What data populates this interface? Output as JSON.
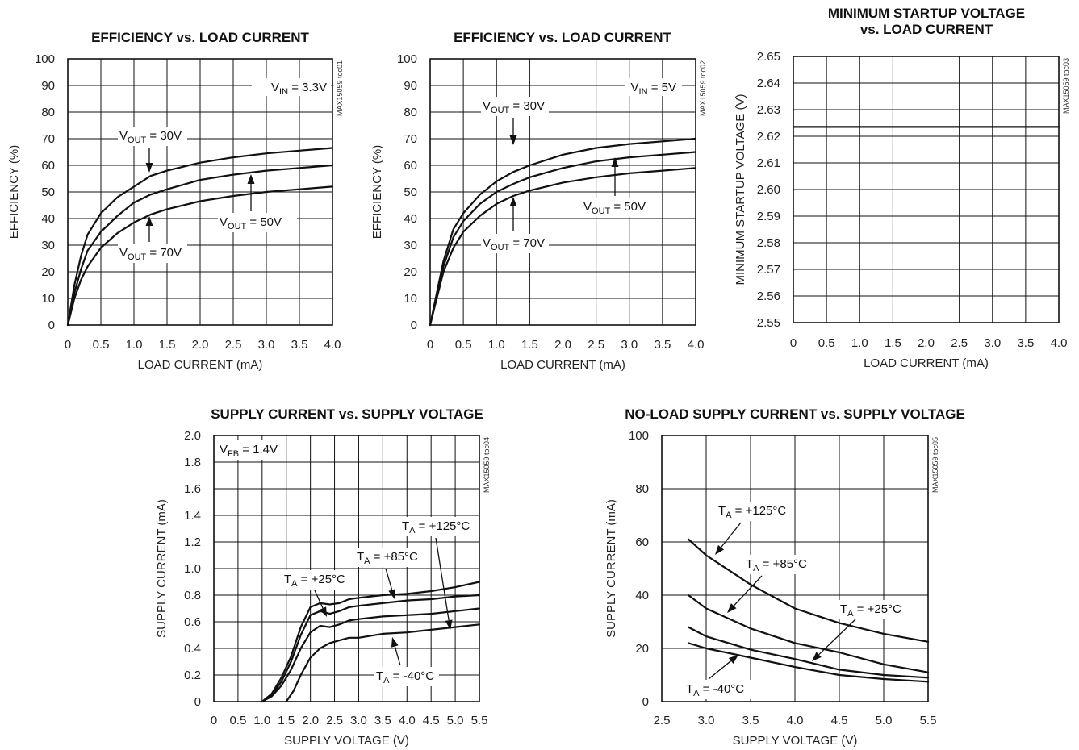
{
  "chart_data": [
    {
      "type": "line",
      "title": "EFFICIENCY vs. LOAD CURRENT",
      "xlabel": "LOAD CURRENT (mA)",
      "ylabel": "EFFICIENCY (%)",
      "xlim": [
        0,
        4.0
      ],
      "ylim": [
        0,
        100
      ],
      "xticks": [
        "0",
        "0.5",
        "1.0",
        "1.5",
        "2.0",
        "2.5",
        "3.0",
        "3.5",
        "4.0"
      ],
      "yticks": [
        "0",
        "10",
        "20",
        "30",
        "40",
        "50",
        "60",
        "70",
        "80",
        "90",
        "100"
      ],
      "code": "MAX15059 toc01",
      "grid": true,
      "series": [
        {
          "name": "VOUT = 30V",
          "x": [
            0,
            0.1,
            0.2,
            0.3,
            0.5,
            0.75,
            1.0,
            1.25,
            1.5,
            2.0,
            2.5,
            3.0,
            3.5,
            4.0
          ],
          "values": [
            0,
            15,
            26,
            34,
            42,
            48,
            52,
            56,
            58,
            61,
            63,
            64.5,
            65.5,
            66.5
          ]
        },
        {
          "name": "VOUT = 50V",
          "x": [
            0,
            0.1,
            0.2,
            0.3,
            0.5,
            0.75,
            1.0,
            1.25,
            1.5,
            2.0,
            2.5,
            3.0,
            3.5,
            4.0
          ],
          "values": [
            0,
            12,
            21,
            28,
            35,
            41,
            46,
            49,
            51,
            54.5,
            56.5,
            58,
            59,
            60
          ]
        },
        {
          "name": "VOUT = 70V",
          "x": [
            0,
            0.1,
            0.2,
            0.3,
            0.5,
            0.75,
            1.0,
            1.25,
            1.5,
            2.0,
            2.5,
            3.0,
            3.5,
            4.0
          ],
          "values": [
            0,
            10,
            17,
            22,
            29,
            34.5,
            38.5,
            41.5,
            43.5,
            46.5,
            48.5,
            50,
            51,
            52
          ]
        }
      ],
      "annotations": {
        "vin": {
          "main": "V",
          "sub": "IN",
          "rest": " = 3.3V"
        },
        "labels": [
          {
            "main": "V",
            "sub": "OUT",
            "rest": " = 30V"
          },
          {
            "main": "V",
            "sub": "OUT",
            "rest": " = 50V"
          },
          {
            "main": "V",
            "sub": "OUT",
            "rest": " = 70V"
          }
        ]
      }
    },
    {
      "type": "line",
      "title": "EFFICIENCY vs. LOAD CURRENT",
      "xlabel": "LOAD CURRENT (mA)",
      "ylabel": "EFFICIENCY (%)",
      "xlim": [
        0,
        4.0
      ],
      "ylim": [
        0,
        100
      ],
      "xticks": [
        "0",
        "0.5",
        "1.0",
        "1.5",
        "2.0",
        "2.5",
        "3.0",
        "3.5",
        "4.0"
      ],
      "yticks": [
        "0",
        "10",
        "20",
        "30",
        "40",
        "50",
        "60",
        "70",
        "80",
        "90",
        "100"
      ],
      "code": "MAX15059 toc02",
      "grid": true,
      "series": [
        {
          "name": "VOUT = 30V",
          "x": [
            0,
            0.1,
            0.2,
            0.35,
            0.5,
            0.75,
            1.0,
            1.25,
            1.5,
            2.0,
            2.5,
            3.0,
            3.5,
            4.0
          ],
          "values": [
            0,
            12,
            24,
            36,
            42,
            49,
            54,
            57.5,
            60,
            64,
            66.5,
            68,
            69,
            70
          ]
        },
        {
          "name": "VOUT = 50V",
          "x": [
            0,
            0.1,
            0.2,
            0.35,
            0.5,
            0.75,
            1.0,
            1.25,
            1.5,
            2.0,
            2.5,
            3.0,
            3.5,
            4.0
          ],
          "values": [
            0,
            11,
            22,
            33,
            39,
            45.5,
            50,
            53,
            55.5,
            59,
            61.5,
            63,
            64,
            65
          ]
        },
        {
          "name": "VOUT = 70V",
          "x": [
            0,
            0.1,
            0.2,
            0.35,
            0.5,
            0.75,
            1.0,
            1.25,
            1.5,
            2.0,
            2.5,
            3.0,
            3.5,
            4.0
          ],
          "values": [
            0,
            10,
            20,
            29,
            35,
            41,
            45.5,
            48.5,
            50.5,
            53.5,
            55.5,
            57,
            58,
            59
          ]
        }
      ],
      "annotations": {
        "vin": {
          "main": "V",
          "sub": "IN",
          "rest": " = 5V"
        },
        "labels": [
          {
            "main": "V",
            "sub": "OUT",
            "rest": " = 30V"
          },
          {
            "main": "V",
            "sub": "OUT",
            "rest": " = 50V"
          },
          {
            "main": "V",
            "sub": "OUT",
            "rest": " = 70V"
          }
        ]
      }
    },
    {
      "type": "line",
      "title": "MINIMUM STARTUP VOLTAGE",
      "title2": "vs. LOAD CURRENT",
      "xlabel": "LOAD CURRENT (mA)",
      "ylabel": "MINIMUM STARTUP VOLTAGE (V)",
      "xlim": [
        0,
        4.0
      ],
      "ylim": [
        2.55,
        2.65
      ],
      "xticks": [
        "0",
        "0.5",
        "1.0",
        "1.5",
        "2.0",
        "2.5",
        "3.0",
        "3.5",
        "4.0"
      ],
      "yticks": [
        "2.55",
        "2.56",
        "2.57",
        "2.58",
        "2.59",
        "2.60",
        "2.61",
        "2.62",
        "2.63",
        "2.64",
        "2.65"
      ],
      "code": "MAX15059 toc03",
      "grid": true,
      "series": [
        {
          "x": [
            0,
            4.0
          ],
          "values": [
            2.6235,
            2.6235
          ]
        }
      ]
    },
    {
      "type": "line",
      "title": "SUPPLY CURRENT vs. SUPPLY VOLTAGE",
      "xlabel": "SUPPLY VOLTAGE (V)",
      "ylabel": "SUPPLY CURRENT (mA)",
      "xlim": [
        0,
        5.5
      ],
      "ylim": [
        0,
        2.0
      ],
      "xticks": [
        "0",
        "0.5",
        "1.0",
        "1.5",
        "2.0",
        "2.5",
        "3.0",
        "3.5",
        "4.0",
        "4.5",
        "5.0",
        "5.5"
      ],
      "yticks": [
        "0",
        "0.2",
        "0.4",
        "0.6",
        "0.8",
        "1.0",
        "1.2",
        "1.4",
        "1.6",
        "1.8",
        "2.0"
      ],
      "code": "MAX15059 toc04",
      "grid": true,
      "series": [
        {
          "name": "TA = +125°C",
          "x": [
            1.0,
            1.2,
            1.4,
            1.6,
            1.8,
            2.0,
            2.2,
            2.4,
            2.6,
            2.8,
            3.0,
            3.5,
            4.0,
            4.5,
            5.0,
            5.5
          ],
          "values": [
            0,
            0.06,
            0.18,
            0.34,
            0.56,
            0.71,
            0.74,
            0.73,
            0.74,
            0.77,
            0.78,
            0.8,
            0.81,
            0.83,
            0.86,
            0.9
          ]
        },
        {
          "name": "TA = +85°C",
          "x": [
            1.0,
            1.2,
            1.4,
            1.6,
            1.8,
            2.0,
            2.2,
            2.4,
            2.6,
            2.8,
            3.0,
            3.5,
            4.0,
            4.5,
            5.0,
            5.5
          ],
          "values": [
            0,
            0.05,
            0.15,
            0.3,
            0.5,
            0.65,
            0.68,
            0.66,
            0.68,
            0.71,
            0.72,
            0.74,
            0.76,
            0.77,
            0.79,
            0.8
          ]
        },
        {
          "name": "TA = +25°C",
          "x": [
            1.0,
            1.2,
            1.4,
            1.6,
            1.8,
            2.0,
            2.2,
            2.4,
            2.6,
            2.8,
            3.0,
            3.5,
            4.0,
            4.5,
            5.0,
            5.5
          ],
          "values": [
            0,
            0.04,
            0.12,
            0.24,
            0.4,
            0.52,
            0.57,
            0.56,
            0.58,
            0.61,
            0.62,
            0.64,
            0.65,
            0.66,
            0.68,
            0.7
          ]
        },
        {
          "name": "TA = -40°C",
          "x": [
            1.5,
            1.65,
            1.8,
            2.0,
            2.2,
            2.4,
            2.6,
            2.8,
            3.0,
            3.5,
            4.0,
            4.5,
            5.0,
            5.5
          ],
          "values": [
            0,
            0.08,
            0.2,
            0.33,
            0.4,
            0.44,
            0.46,
            0.48,
            0.48,
            0.51,
            0.52,
            0.54,
            0.56,
            0.58
          ]
        }
      ],
      "annotations": {
        "vfb": {
          "main": "V",
          "sub": "FB",
          "rest": " = 1.4V"
        },
        "labels": [
          {
            "main": "T",
            "sub": "A",
            "rest": " = +125°C"
          },
          {
            "main": "T",
            "sub": "A",
            "rest": " = +85°C"
          },
          {
            "main": "T",
            "sub": "A",
            "rest": " = +25°C"
          },
          {
            "main": "T",
            "sub": "A",
            "rest": " = -40°C"
          }
        ]
      }
    },
    {
      "type": "line",
      "title": "NO-LOAD SUPPLY CURRENT vs. SUPPLY VOLTAGE",
      "xlabel": "SUPPLY VOLTAGE (V)",
      "ylabel": "SUPPLY CURRENT (mA)",
      "xlim": [
        2.5,
        5.5
      ],
      "ylim": [
        0,
        100
      ],
      "xticks": [
        "2.5",
        "3.0",
        "3.5",
        "4.0",
        "4.5",
        "5.0",
        "5.5"
      ],
      "yticks": [
        "0",
        "20",
        "40",
        "60",
        "80",
        "100"
      ],
      "code": "MAX15059 toc05",
      "grid": true,
      "series": [
        {
          "name": "TA = +125°C",
          "x": [
            2.8,
            3.0,
            3.5,
            4.0,
            4.5,
            5.0,
            5.5
          ],
          "values": [
            61,
            55,
            44,
            35,
            29.5,
            25.5,
            22.5
          ]
        },
        {
          "name": "TA = +85°C",
          "x": [
            2.8,
            3.0,
            3.5,
            4.0,
            4.5,
            5.0,
            5.5
          ],
          "values": [
            40,
            35,
            27.5,
            22,
            18.5,
            14,
            11
          ]
        },
        {
          "name": "TA = +25°C",
          "x": [
            2.8,
            3.0,
            3.5,
            4.0,
            4.5,
            5.0,
            5.5
          ],
          "values": [
            28,
            24.5,
            19.5,
            16,
            12,
            10,
            9
          ]
        },
        {
          "name": "TA = -40°C",
          "x": [
            2.8,
            3.0,
            3.5,
            4.0,
            4.5,
            5.0,
            5.5
          ],
          "values": [
            22,
            20,
            16.5,
            13,
            10,
            8.5,
            7.5
          ]
        }
      ],
      "annotations": {
        "labels": [
          {
            "main": "T",
            "sub": "A",
            "rest": " = +125°C"
          },
          {
            "main": "T",
            "sub": "A",
            "rest": " = +85°C"
          },
          {
            "main": "T",
            "sub": "A",
            "rest": " = +25°C"
          },
          {
            "main": "T",
            "sub": "A",
            "rest": " = -40°C"
          }
        ]
      }
    }
  ]
}
